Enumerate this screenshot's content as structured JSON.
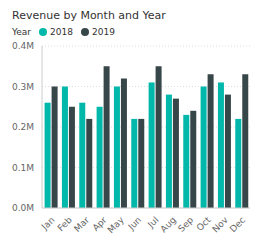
{
  "chart_data": {
    "type": "bar",
    "title": "Revenue by Month and Year",
    "legend_title": "Year",
    "legend": "top-left",
    "grid": true,
    "categories": [
      "Jan",
      "Feb",
      "Mar",
      "Apr",
      "May",
      "Jun",
      "Jul",
      "Aug",
      "Sep",
      "Oct",
      "Nov",
      "Dec"
    ],
    "series": [
      {
        "name": "2018",
        "color": "#01B8AA",
        "values": [
          260000,
          300000,
          260000,
          250000,
          300000,
          220000,
          310000,
          280000,
          230000,
          300000,
          310000,
          220000
        ]
      },
      {
        "name": "2019",
        "color": "#374649",
        "values": [
          300000,
          250000,
          220000,
          350000,
          320000,
          220000,
          350000,
          270000,
          240000,
          330000,
          280000,
          330000
        ]
      }
    ],
    "ylim": [
      0,
      400000
    ],
    "yticks": [
      {
        "value": 0,
        "label": "0.0M"
      },
      {
        "value": 100000,
        "label": "0.1M"
      },
      {
        "value": 200000,
        "label": "0.2M"
      },
      {
        "value": 300000,
        "label": "0.3M"
      },
      {
        "value": 400000,
        "label": "0.4M"
      }
    ]
  }
}
